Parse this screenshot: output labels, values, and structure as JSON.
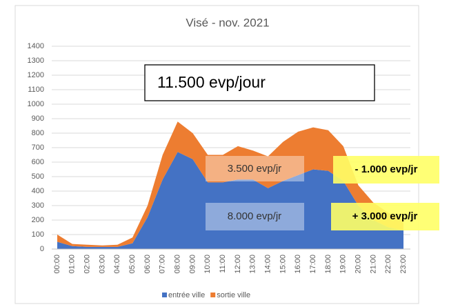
{
  "chart_data": {
    "type": "stacked_area",
    "title": "Visé  - nov. 2021",
    "categories": [
      "00:00",
      "01:00",
      "02:00",
      "03:00",
      "04:00",
      "05:00",
      "06:00",
      "07:00",
      "08:00",
      "09:00",
      "10:00",
      "11:00",
      "12:00",
      "13:00",
      "14:00",
      "15:00",
      "16:00",
      "17:00",
      "18:00",
      "19:00",
      "20:00",
      "21:00",
      "22:00",
      "23:00"
    ],
    "series": [
      {
        "name": "entrée ville",
        "color": "#4472c4",
        "values": [
          50,
          20,
          15,
          15,
          15,
          40,
          220,
          480,
          670,
          620,
          460,
          460,
          480,
          480,
          420,
          470,
          510,
          550,
          540,
          470,
          300,
          200,
          150,
          130
        ]
      },
      {
        "name": "sortie ville",
        "color": "#ed7d31",
        "values": [
          50,
          15,
          15,
          10,
          15,
          40,
          80,
          170,
          210,
          180,
          190,
          190,
          230,
          200,
          220,
          270,
          300,
          290,
          280,
          240,
          140,
          120,
          100,
          70
        ]
      }
    ],
    "ylim": [
      0,
      1400
    ],
    "yticks": [
      0,
      100,
      200,
      300,
      400,
      500,
      600,
      700,
      800,
      900,
      1000,
      1100,
      1200,
      1300,
      1400
    ],
    "grid": true,
    "legend": "bottom",
    "annotations": [
      "11.500 evp/jour",
      "3.500 evp/jr",
      "8.000 evp/jr",
      "- 1.000 evp/jr",
      "+ 3.000 evp/jr"
    ]
  }
}
